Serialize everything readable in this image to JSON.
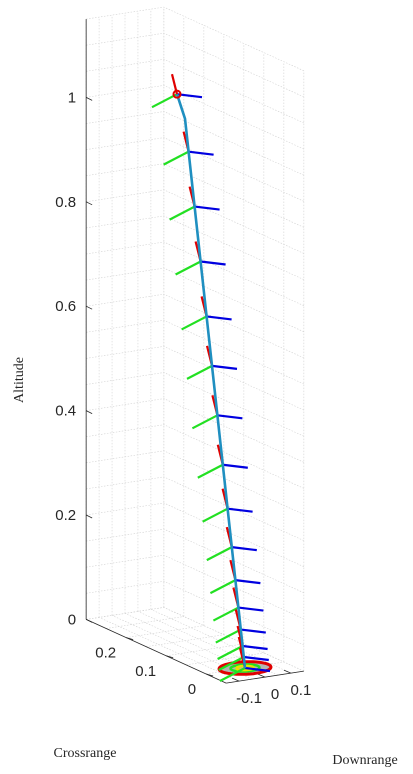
{
  "chart_data": {
    "type": "line",
    "projection": "3d",
    "title": "",
    "xlabel": "Downrange",
    "ylabel": "Crossrange",
    "zlabel": "Altitude",
    "grid": true,
    "xlim": [
      -0.15,
      0.15
    ],
    "ylim": [
      -0.05,
      0.3
    ],
    "zlim": [
      0,
      1.15
    ],
    "x_ticks": [
      -0.1,
      0,
      0.1
    ],
    "x_tick_labels": [
      "-0.1",
      "0",
      "0.1"
    ],
    "y_ticks": [
      0,
      0.1,
      0.2
    ],
    "y_tick_labels": [
      "0",
      "0.1",
      "0.2"
    ],
    "z_ticks": [
      0,
      0.2,
      0.4,
      0.6,
      0.8,
      1
    ],
    "z_tick_labels": [
      "0",
      "0.2",
      "0.4",
      "0.6",
      "0.8",
      "1"
    ],
    "trajectory": {
      "color": "#1f8fc0",
      "x": [
        0.0,
        0.0,
        0.0,
        0.0,
        0.0,
        0.0,
        0.0
      ],
      "y": [
        0.0,
        0.03,
        0.06,
        0.09,
        0.12,
        0.15,
        0.17
      ],
      "z": [
        0.0,
        0.2,
        0.4,
        0.6,
        0.8,
        1.0,
        1.04
      ]
    },
    "start_marker": {
      "x": 0.0,
      "y": 0.17,
      "z": 1.04,
      "color": "#e00000"
    },
    "body_axis_colors": {
      "x_axis": "#0000e0",
      "y_axis": "#22e022",
      "z_axis": "#e00000"
    },
    "frame_samples_z": [
      1.04,
      0.94,
      0.84,
      0.74,
      0.64,
      0.55,
      0.46,
      0.37,
      0.29,
      0.22,
      0.16,
      0.11,
      0.07,
      0.04,
      0.02,
      0.0
    ],
    "landing_target": {
      "rings": [
        {
          "radius": 0.09,
          "color": "#e00000"
        },
        {
          "radius": 0.05,
          "color": "#22e022"
        },
        {
          "radius": 0.03,
          "color": "#e6e600"
        }
      ],
      "pad_color": "#9a9a9a"
    }
  }
}
